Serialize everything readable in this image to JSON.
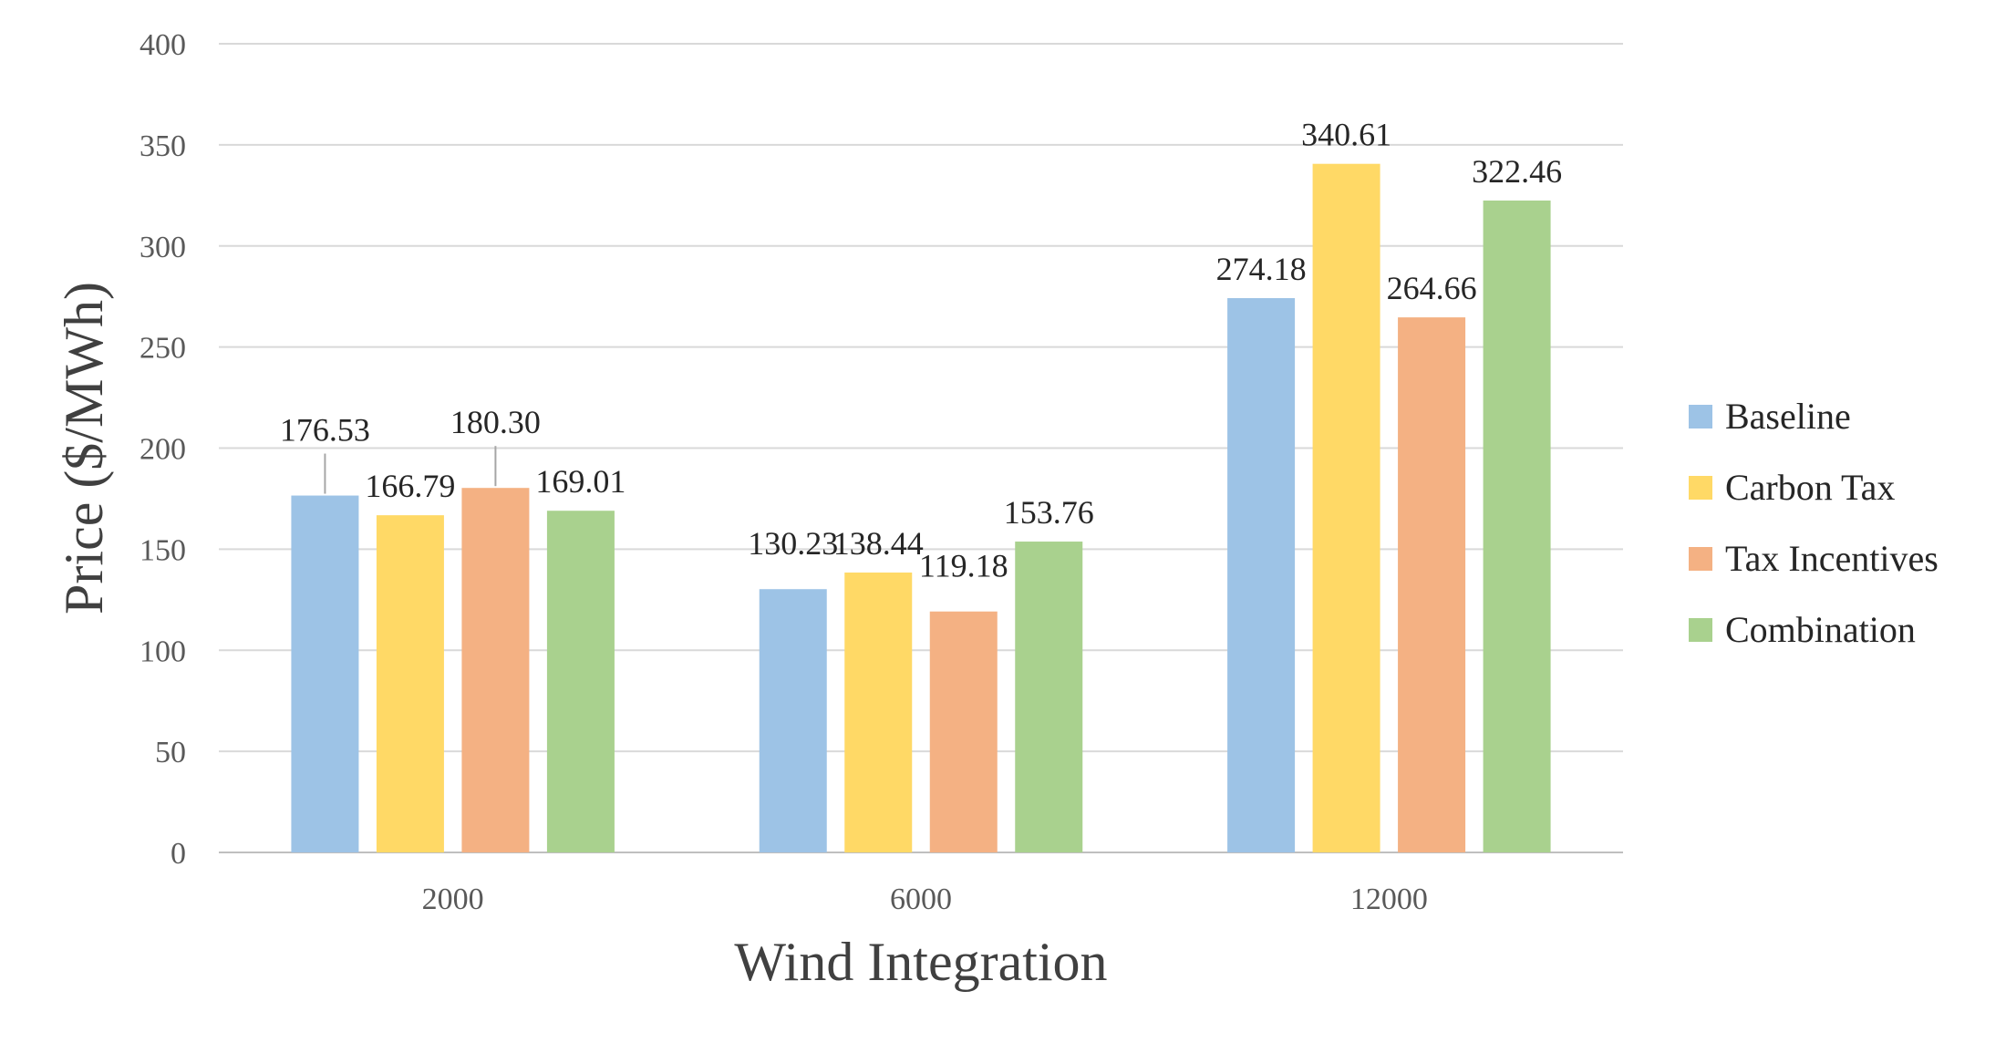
{
  "chart_data": {
    "type": "bar",
    "title": "",
    "xlabel": "Wind Integration",
    "ylabel": "Price ($/MWh)",
    "categories": [
      "2000",
      "6000",
      "12000"
    ],
    "ylim": [
      0,
      400
    ],
    "yticks": [
      0,
      50,
      100,
      150,
      200,
      250,
      300,
      350,
      400
    ],
    "ytick_labels": [
      "0",
      "50",
      "100",
      "150",
      "200",
      "250",
      "300",
      "350",
      "400"
    ],
    "grid": true,
    "legend_position": "right",
    "series": [
      {
        "name": "Baseline",
        "color": "#9dc3e6",
        "values": [
          176.53,
          130.23,
          274.18
        ],
        "labels": [
          "176.53",
          "130.23",
          "274.18"
        ]
      },
      {
        "name": "Carbon Tax",
        "color": "#ffd966",
        "values": [
          166.79,
          138.44,
          340.61
        ],
        "labels": [
          "166.79",
          "138.44",
          "340.61"
        ]
      },
      {
        "name": "Tax Incentives",
        "color": "#f4b183",
        "values": [
          180.3,
          119.18,
          264.66
        ],
        "labels": [
          "180.30",
          "119.18",
          "264.66"
        ]
      },
      {
        "name": "Combination",
        "color": "#a9d18e",
        "values": [
          169.01,
          153.76,
          322.46
        ],
        "labels": [
          "169.01",
          "153.76",
          "322.46"
        ]
      }
    ]
  }
}
